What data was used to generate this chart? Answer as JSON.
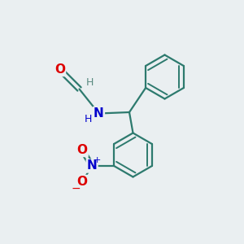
{
  "bg_color": "#eaeff1",
  "bond_color": "#2d7a6e",
  "atom_colors": {
    "O": "#dd0000",
    "N_amine": "#0000cc",
    "N_nitro": "#0000cc",
    "H": "#5a8a80"
  },
  "figsize": [
    3.0,
    3.0
  ],
  "dpi": 100,
  "lw": 1.6,
  "lw_inner": 1.4,
  "ring_r": 0.9,
  "font_size_atom": 11,
  "font_size_h": 9
}
